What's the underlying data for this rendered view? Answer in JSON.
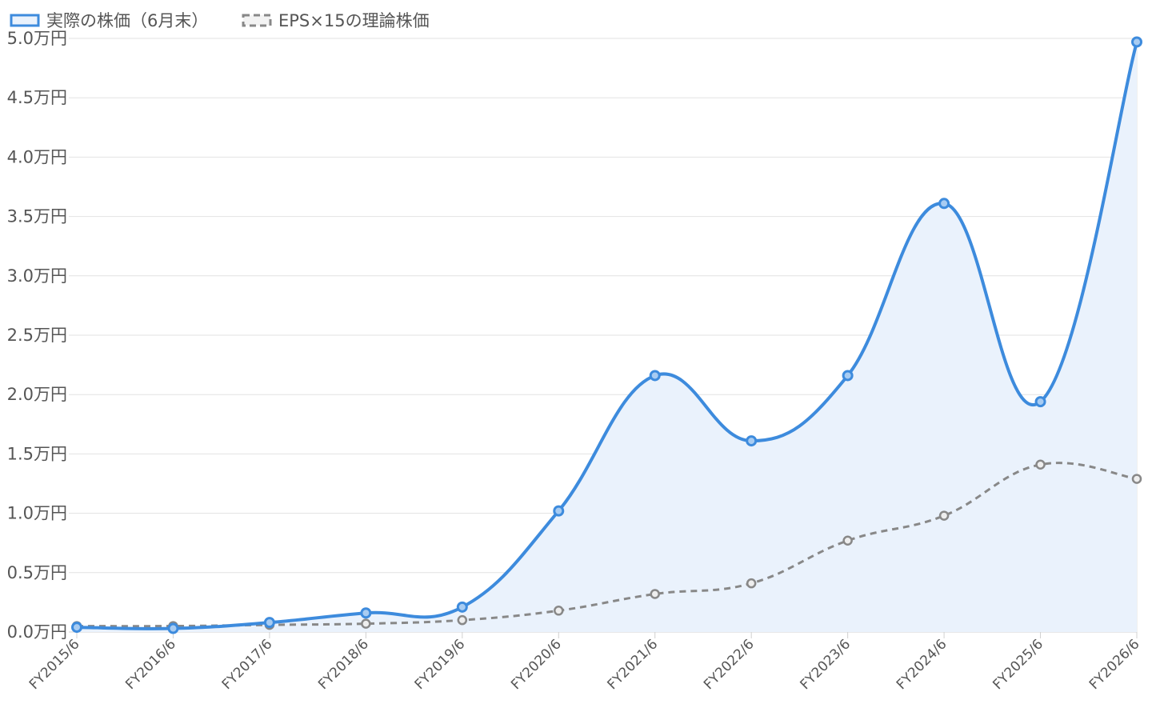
{
  "chart_data": {
    "type": "line",
    "title": "",
    "xlabel": "",
    "ylabel": "",
    "categories": [
      "FY2015/6",
      "FY2016/6",
      "FY2017/6",
      "FY2018/6",
      "FY2019/6",
      "FY2020/6",
      "FY2021/6",
      "FY2022/6",
      "FY2023/6",
      "FY2024/6",
      "FY2025/6",
      "FY2026/6"
    ],
    "y_tick_labels": [
      "0.0万円",
      "0.5万円",
      "1.0万円",
      "1.5万円",
      "2.0万円",
      "2.5万円",
      "3.0万円",
      "3.5万円",
      "4.0万円",
      "4.5万円",
      "5.0万円"
    ],
    "ylim": [
      0,
      5.0
    ],
    "y_unit": "万円",
    "grid": true,
    "legend_position": "top-left",
    "series": [
      {
        "name": "実際の株価（6月末）",
        "color": "#3d8bdd",
        "fill": "#eaf2fc",
        "style": "solid",
        "values": [
          0.04,
          0.03,
          0.08,
          0.16,
          0.21,
          1.02,
          2.16,
          1.61,
          2.16,
          3.61,
          1.94,
          4.97
        ]
      },
      {
        "name": "EPS×15の理論株価",
        "color": "#888888",
        "style": "dashed",
        "values": [
          0.05,
          0.05,
          0.06,
          0.07,
          0.1,
          0.18,
          0.32,
          0.41,
          0.77,
          0.98,
          1.41,
          1.29
        ]
      }
    ]
  }
}
